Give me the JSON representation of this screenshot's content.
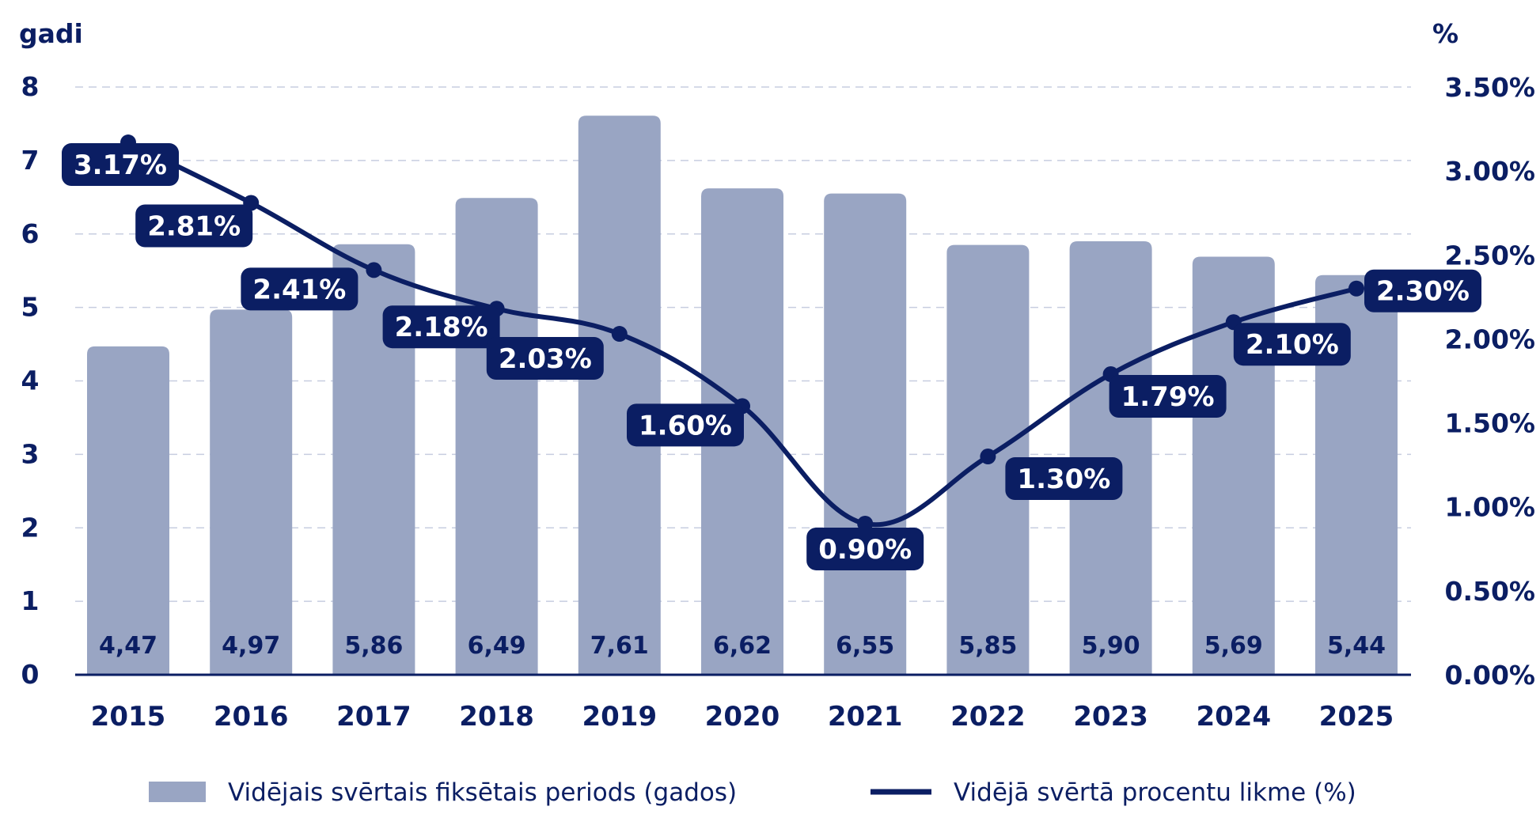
{
  "chart_data": {
    "type": "bar+line",
    "categories": [
      "2015",
      "2016",
      "2017",
      "2018",
      "2019",
      "2020",
      "2021",
      "2022",
      "2023",
      "2024",
      "2025"
    ],
    "series": [
      {
        "name": "Vidējais svērtais fiksētais periods (gados)",
        "type": "bar",
        "axis": "left",
        "values": [
          4.47,
          4.97,
          5.86,
          6.49,
          7.61,
          6.62,
          6.55,
          5.85,
          5.9,
          5.69,
          5.44
        ],
        "labels": [
          "4,47",
          "4,97",
          "5,86",
          "6,49",
          "7,61",
          "6,62",
          "6,55",
          "5,85",
          "5,90",
          "5,69",
          "5,44"
        ]
      },
      {
        "name": "Vidējā svērtā procentu likme (%)",
        "type": "line",
        "axis": "right",
        "values": [
          3.17,
          2.81,
          2.41,
          2.18,
          2.03,
          1.6,
          0.9,
          1.3,
          1.79,
          2.1,
          2.3
        ],
        "labels": [
          "3.17%",
          "2.81%",
          "2.41%",
          "2.18%",
          "2.03%",
          "1.60%",
          "0.90%",
          "1.30%",
          "1.79%",
          "2.10%",
          "2.30%"
        ]
      }
    ],
    "y_left": {
      "title": "gadi",
      "range": [
        0,
        8
      ],
      "ticks": [
        "0",
        "1",
        "2",
        "3",
        "4",
        "5",
        "6",
        "7",
        "8"
      ]
    },
    "y_right": {
      "title": "%",
      "range": [
        0,
        3.5
      ],
      "ticks": [
        "0.00%",
        "0.50%",
        "1.00%",
        "1.50%",
        "2.00%",
        "2.50%",
        "3.00%",
        "3.50%"
      ]
    },
    "grid": true,
    "legend_position": "bottom"
  },
  "colors": {
    "bar": "#99a5c3",
    "line": "#0b1e63",
    "text": "#0b1e63",
    "grid": "#c7cde0",
    "pill_text": "#ffffff"
  }
}
